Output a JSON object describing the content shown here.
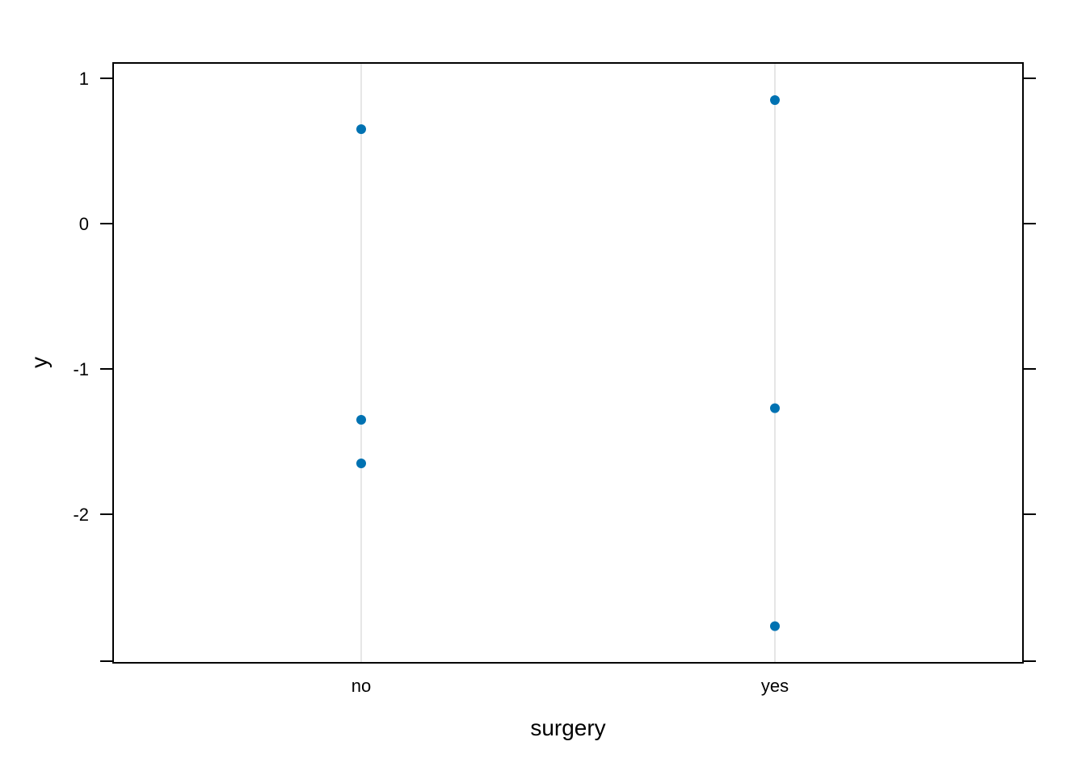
{
  "chart_data": {
    "type": "scatter",
    "title": "",
    "xlabel": "surgery",
    "ylabel": "y",
    "categories": [
      "no",
      "yes"
    ],
    "series": [
      {
        "points": [
          {
            "x": "no",
            "y": 0.65
          },
          {
            "x": "no",
            "y": -1.35
          },
          {
            "x": "no",
            "y": -1.65
          },
          {
            "x": "yes",
            "y": 0.85
          },
          {
            "x": "yes",
            "y": -1.27
          },
          {
            "x": "yes",
            "y": -2.77
          }
        ]
      }
    ],
    "y_ticks": [
      {
        "value": 1,
        "label": "1"
      },
      {
        "value": 0,
        "label": "0"
      },
      {
        "value": -1,
        "label": "-1"
      },
      {
        "value": -2,
        "label": "-2"
      }
    ],
    "ylim": [
      -3.0,
      1.1
    ],
    "grid": "vertical reference lines at categories",
    "colors": {
      "point": "#0072b2",
      "gridline": "#e6e6e6",
      "frame": "#000000"
    }
  }
}
